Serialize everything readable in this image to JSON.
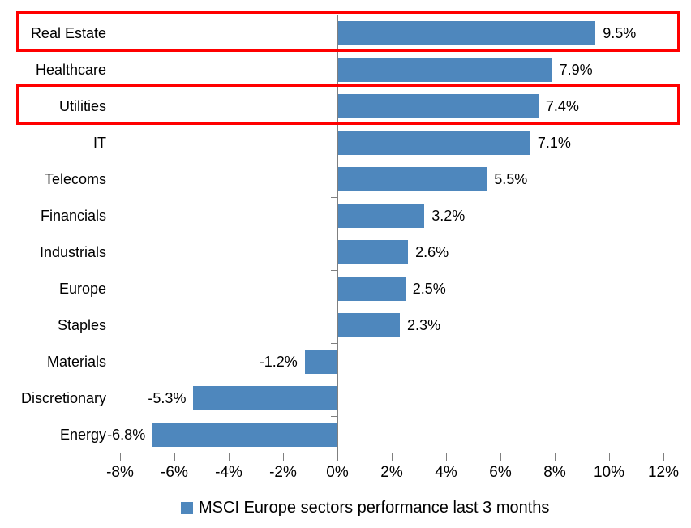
{
  "chart_data": {
    "type": "bar",
    "orientation": "horizontal",
    "title": "",
    "categories": [
      "Real Estate",
      "Healthcare",
      "Utilities",
      "IT",
      "Telecoms",
      "Financials",
      "Industrials",
      "Europe",
      "Staples",
      "Materials",
      "Discretionary",
      "Energy"
    ],
    "values": [
      9.5,
      7.9,
      7.4,
      7.1,
      5.5,
      3.2,
      2.6,
      2.5,
      2.3,
      -1.2,
      -5.3,
      -6.8
    ],
    "value_labels": [
      "9.5%",
      "7.9%",
      "7.4%",
      "7.1%",
      "5.5%",
      "3.2%",
      "2.6%",
      "2.5%",
      "2.3%",
      "-1.2%",
      "-5.3%",
      "-6.8%"
    ],
    "x_axis": {
      "min": -8,
      "max": 12,
      "step": 2,
      "tick_labels": [
        "-8%",
        "-6%",
        "-4%",
        "-2%",
        "0%",
        "2%",
        "4%",
        "6%",
        "8%",
        "10%",
        "12%"
      ]
    },
    "grid": "off",
    "bar_color": "#4E87BD",
    "axis_color": "#7f7f7f",
    "highlight_color": "#FF0000",
    "highlighted_categories": [
      "Real Estate",
      "Utilities"
    ],
    "legend": {
      "label": "MSCI Europe sectors performance last 3 months",
      "marker_color": "#4E87BD",
      "position": "bottom-center"
    }
  }
}
